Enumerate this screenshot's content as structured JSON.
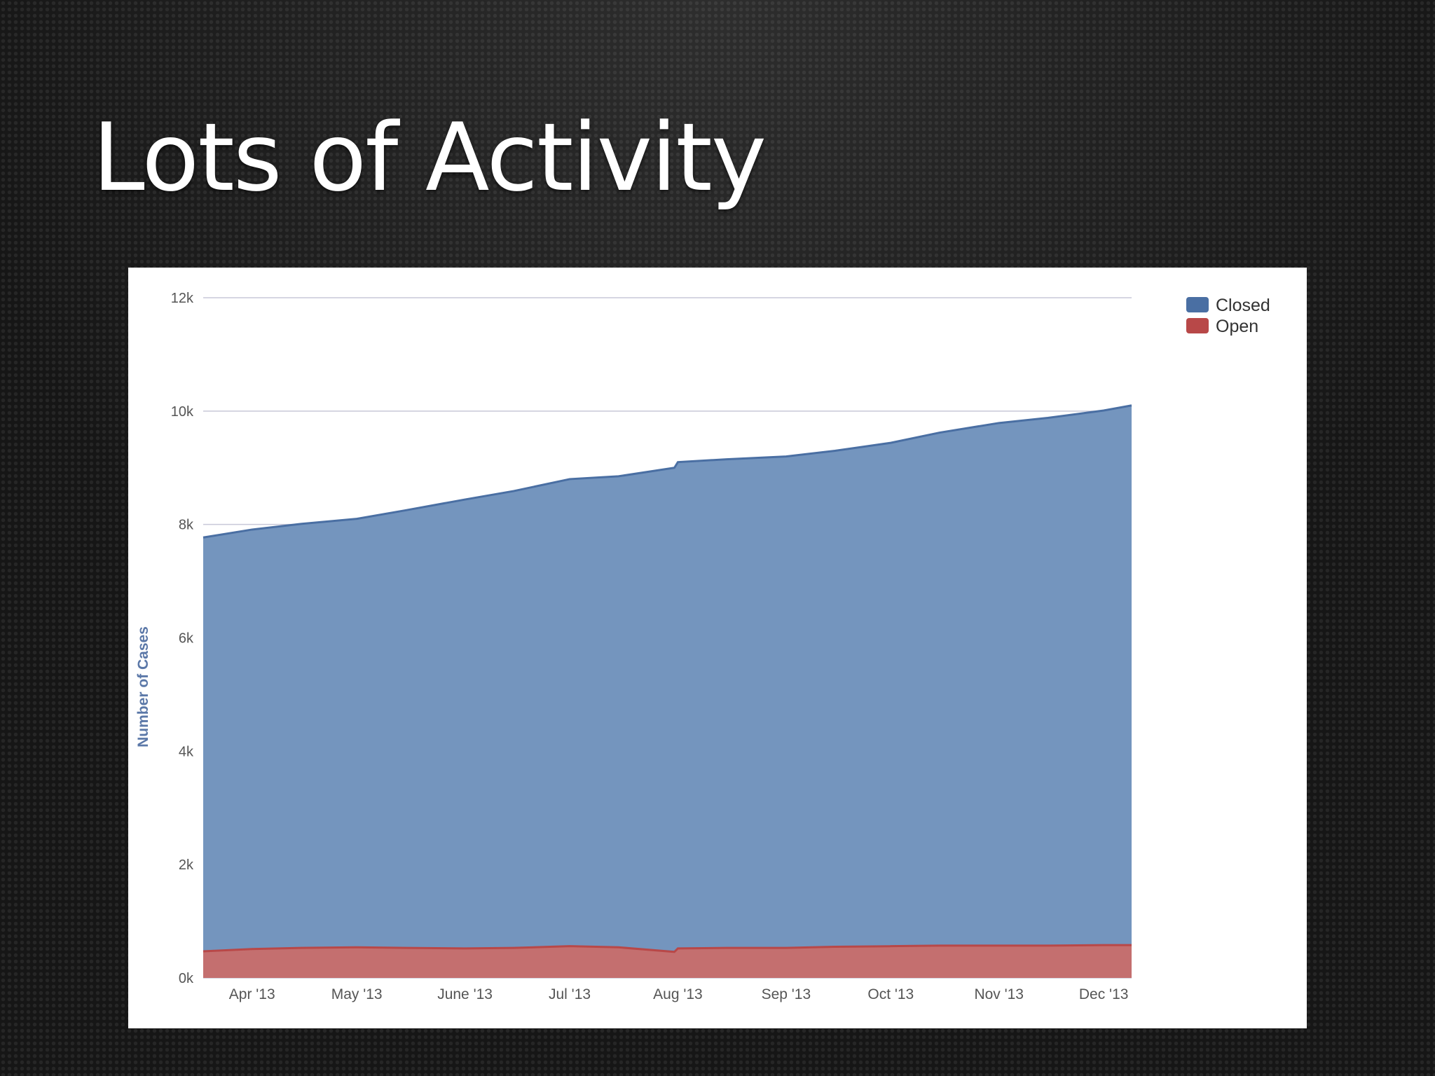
{
  "slide": {
    "title": "Lots of Activity"
  },
  "colors": {
    "closed_fill": "#7495be",
    "closed_line": "#4a6fa3",
    "closed_legend": "#4a6fa3",
    "open_fill": "#c46f6f",
    "open_line": "#b84848",
    "open_legend": "#b84848",
    "grid": "#c8c8d8"
  },
  "chart_data": {
    "type": "area",
    "stacked": true,
    "xlabel": "",
    "ylabel": "Number of Cases",
    "ylim": [
      0,
      12000
    ],
    "y_ticks": [
      0,
      2000,
      4000,
      6000,
      8000,
      10000,
      12000
    ],
    "y_tick_labels": [
      "0k",
      "2k",
      "4k",
      "6k",
      "8k",
      "10k",
      "12k"
    ],
    "x_range": [
      "2013-03-18",
      "2013-12-09"
    ],
    "x_ticks": [
      "2013-04-01",
      "2013-05-01",
      "2013-06-01",
      "2013-07-01",
      "2013-08-01",
      "2013-09-01",
      "2013-10-01",
      "2013-11-01",
      "2013-12-01"
    ],
    "x_tick_labels": [
      "Apr '13",
      "May '13",
      "June '13",
      "Jul '13",
      "Aug '13",
      "Sep '13",
      "Oct '13",
      "Nov '13",
      "Dec '13"
    ],
    "grid": true,
    "legend": "top-right",
    "x": [
      "2013-03-18",
      "2013-04-01",
      "2013-04-15",
      "2013-05-01",
      "2013-05-15",
      "2013-06-01",
      "2013-06-15",
      "2013-07-01",
      "2013-07-15",
      "2013-07-31",
      "2013-08-01",
      "2013-08-15",
      "2013-09-01",
      "2013-09-15",
      "2013-10-01",
      "2013-10-15",
      "2013-11-01",
      "2013-11-15",
      "2013-12-01",
      "2013-12-09"
    ],
    "series": [
      {
        "name": "Open",
        "values": [
          470,
          510,
          530,
          540,
          530,
          520,
          530,
          560,
          540,
          460,
          520,
          530,
          530,
          550,
          560,
          570,
          570,
          570,
          580,
          580
        ]
      },
      {
        "name": "Closed",
        "values": [
          7300,
          7400,
          7480,
          7560,
          7720,
          7920,
          8060,
          8240,
          8310,
          8540,
          8580,
          8620,
          8670,
          8750,
          8880,
          9050,
          9220,
          9310,
          9430,
          9520
        ]
      }
    ]
  }
}
